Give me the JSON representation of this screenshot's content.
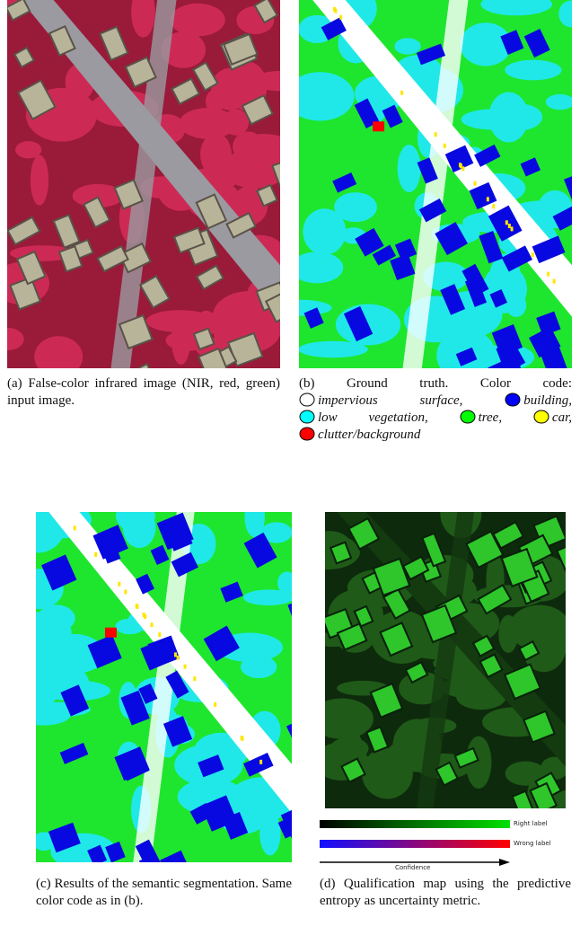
{
  "panels": [
    {
      "label": "(a)",
      "caption": "False-color infrared image (NIR, red, green) input image."
    },
    {
      "label": "(b)",
      "caption": "Ground truth. Color code:",
      "legend": [
        {
          "label": "impervious surface,",
          "color": "#ffffff"
        },
        {
          "label": "building,",
          "color": "#0000ff"
        },
        {
          "label": "low vegetation,",
          "color": "#00ffff"
        },
        {
          "label": "tree,",
          "color": "#00ff00"
        },
        {
          "label": "car,",
          "color": "#ffff00"
        },
        {
          "label": "clutter/background",
          "color": "#ff0000"
        }
      ]
    },
    {
      "label": "(c)",
      "caption": "Results of the semantic segmentation. Same color code as in (b)."
    },
    {
      "label": "(d)",
      "caption": "Qualification map using the predictive entropy as uncertainty metric.",
      "colorbar": {
        "labels": [
          "Right label",
          "Wrong label"
        ],
        "axis_label": "Confidence"
      }
    }
  ]
}
